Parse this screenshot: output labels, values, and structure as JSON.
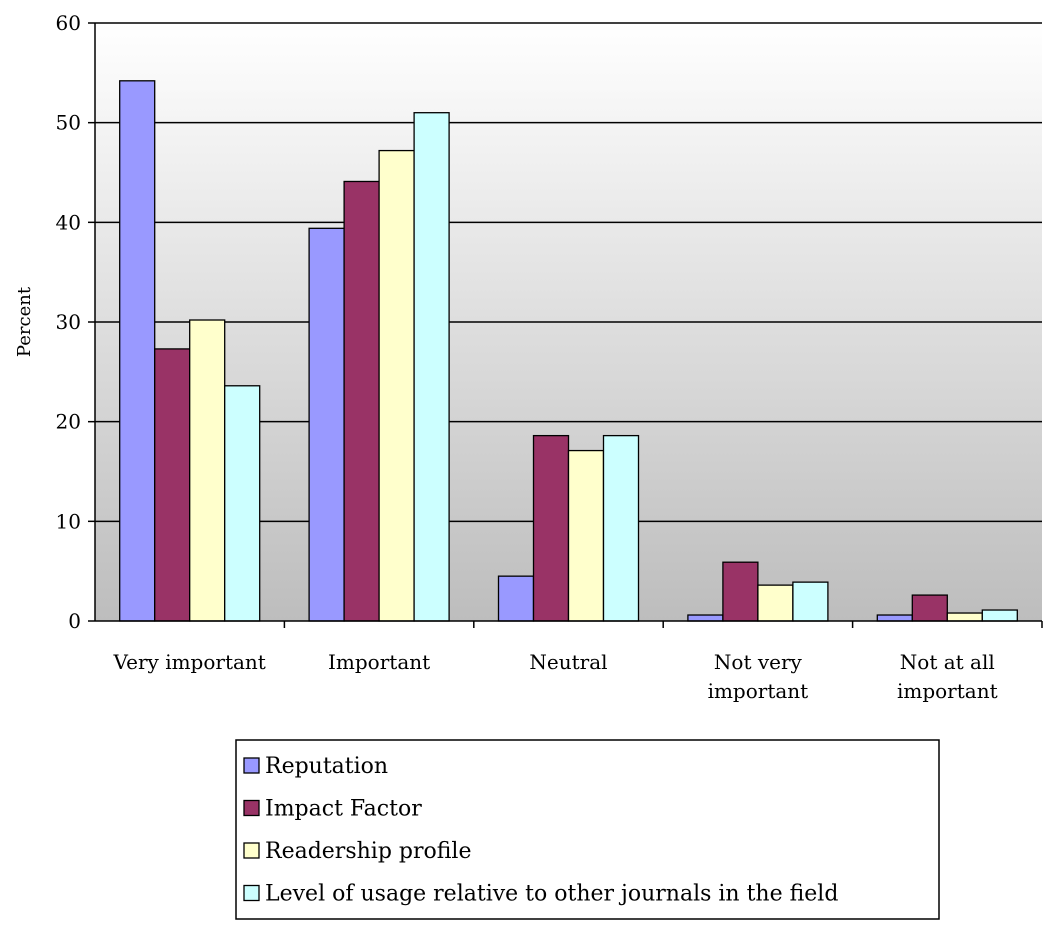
{
  "chart_data": {
    "type": "bar",
    "ylabel": "Percent",
    "xlabel": "",
    "ylim": [
      0,
      60
    ],
    "yticks": [
      0,
      10,
      20,
      30,
      40,
      50,
      60
    ],
    "grid": true,
    "legend_position": "bottom",
    "categories": [
      [
        "Very important"
      ],
      [
        "Important"
      ],
      [
        "Neutral"
      ],
      [
        "Not very",
        "important"
      ],
      [
        "Not at all",
        "important"
      ]
    ],
    "series": [
      {
        "name": "Reputation",
        "color": "#9999ff",
        "values": [
          54.2,
          39.4,
          4.5,
          0.6,
          0.6
        ]
      },
      {
        "name": "Impact Factor",
        "color": "#993366",
        "values": [
          27.3,
          44.1,
          18.6,
          5.9,
          2.6
        ]
      },
      {
        "name": "Readership profile",
        "color": "#ffffcc",
        "values": [
          30.2,
          47.2,
          17.1,
          3.6,
          0.8
        ]
      },
      {
        "name": "Level of usage relative to other journals in the field",
        "color": "#ccffff",
        "values": [
          23.6,
          51.0,
          18.6,
          3.9,
          1.1
        ]
      }
    ]
  }
}
